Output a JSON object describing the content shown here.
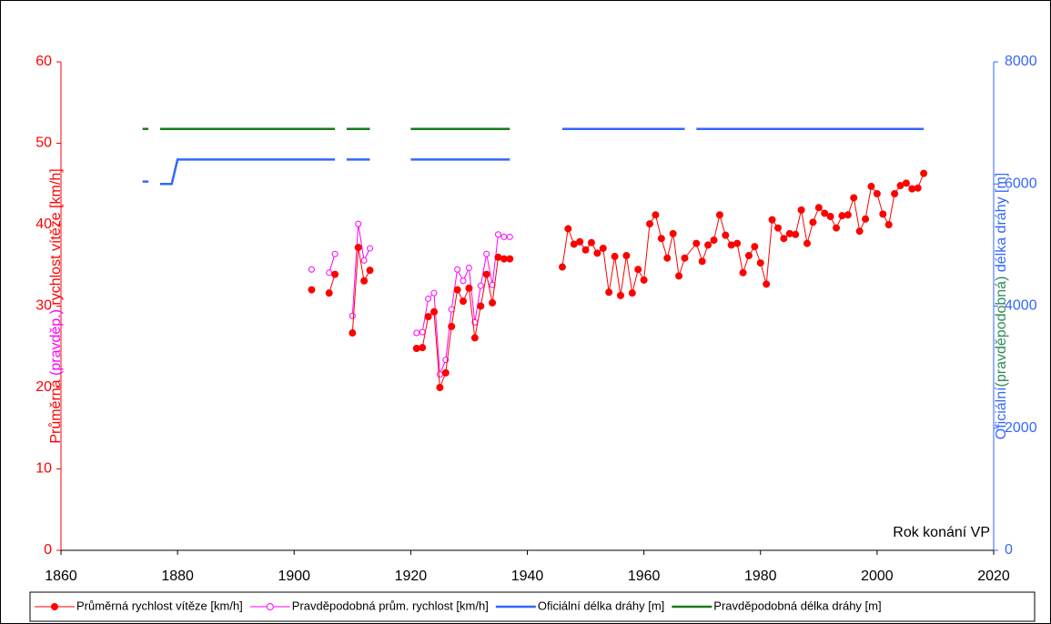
{
  "chart_data": {
    "type": "line",
    "xlabel": "Rok konání VP",
    "ylabel": [
      {
        "text": "Průměrná ",
        "color": "#ff0000"
      },
      {
        "text": "(pravděp.)",
        "color": "#ff00ff"
      },
      {
        "text": " rychlost vítěze [km/h]",
        "color": "#ff0000"
      }
    ],
    "y2label": [
      {
        "text": "Oficiální",
        "color": "#3366ff"
      },
      {
        "text": "(pravděpodobná)",
        "color": "#2e8b57"
      },
      {
        "text": " délka dráhy [m]",
        "color": "#3366ff"
      }
    ],
    "xlim": [
      1860,
      2020
    ],
    "xticks": [
      1860,
      1880,
      1900,
      1920,
      1940,
      1960,
      1980,
      2000,
      2020
    ],
    "ylim": [
      0,
      60
    ],
    "yticks": [
      0,
      10,
      20,
      30,
      40,
      50,
      60
    ],
    "ycolor": "#ff0000",
    "y2lim": [
      0,
      8000
    ],
    "y2ticks": [
      0,
      2000,
      4000,
      6000,
      8000
    ],
    "y2color": "#3366ff",
    "legend": "bottom",
    "series": [
      {
        "name": "Průměrná rychlost vítěze [km/h]",
        "color": "#ff0000",
        "marker": "filled",
        "axis": "y",
        "x": [
          1903,
          1904,
          1906,
          1907,
          1908,
          1910,
          1911,
          1912,
          1913,
          1914,
          1921,
          1922,
          1923,
          1924,
          1925,
          1926,
          1927,
          1928,
          1929,
          1930,
          1931,
          1932,
          1933,
          1934,
          1935,
          1936,
          1937,
          1940,
          1946,
          1947,
          1948,
          1949,
          1950,
          1951,
          1952,
          1953,
          1954,
          1955,
          1956,
          1957,
          1958,
          1959,
          1960,
          1961,
          1962,
          1963,
          1964,
          1965,
          1966,
          1967,
          1969,
          1970,
          1971,
          1972,
          1973,
          1974,
          1975,
          1976,
          1977,
          1978,
          1979,
          1980,
          1981,
          1982,
          1983,
          1984,
          1985,
          1986,
          1987,
          1988,
          1989,
          1990,
          1991,
          1992,
          1993,
          1994,
          1995,
          1996,
          1997,
          1998,
          1999,
          2000,
          2001,
          2002,
          2003,
          2004,
          2005,
          2006,
          2007,
          2008
        ],
        "values": [
          32,
          null,
          31.6,
          33.9,
          null,
          26.7,
          37.2,
          33.1,
          34.4,
          null,
          24.8,
          24.9,
          28.7,
          29.3,
          20,
          21.8,
          27.5,
          32,
          30.6,
          32.2,
          26.1,
          30,
          33.9,
          30.4,
          36,
          35.8,
          35.8,
          null,
          34.8,
          39.5,
          37.6,
          37.9,
          36.9,
          37.8,
          36.5,
          37.1,
          31.7,
          36.1,
          31.3,
          36.2,
          31.6,
          34.5,
          33.2,
          40.1,
          41.2,
          38.3,
          35.9,
          38.9,
          33.7,
          35.9,
          37.7,
          35.5,
          37.5,
          38.1,
          41.2,
          38.7,
          37.5,
          37.7,
          34.1,
          36.2,
          37.3,
          35.3,
          32.7,
          40.6,
          39.6,
          38.3,
          38.9,
          38.8,
          41.8,
          37.7,
          40.3,
          42.1,
          41.4,
          41,
          39.6,
          41.1,
          41.2,
          43.3,
          39.2,
          40.7,
          44.7,
          43.8,
          41.3,
          40,
          43.8,
          44.8,
          45.1,
          44.4,
          44.5,
          46.3
        ]
      },
      {
        "name": "Pravděpodobná prům. rychlost [km/h]",
        "color": "#ff00ff",
        "marker": "open",
        "axis": "y",
        "x": [
          1903,
          1904,
          1906,
          1907,
          1908,
          1910,
          1911,
          1912,
          1913,
          1914,
          1921,
          1922,
          1923,
          1924,
          1925,
          1926,
          1927,
          1928,
          1929,
          1930,
          1931,
          1932,
          1933,
          1934,
          1935,
          1936,
          1937
        ],
        "values": [
          34.5,
          null,
          34.1,
          36.4,
          null,
          28.8,
          40.1,
          35.6,
          37.1,
          null,
          26.7,
          26.8,
          30.9,
          31.6,
          21.6,
          23.4,
          29.6,
          34.5,
          33.1,
          34.7,
          28,
          32.5,
          36.4,
          32.6,
          38.8,
          38.5,
          38.5
        ]
      },
      {
        "name": "Oficiální délka dráhy [m]",
        "color": "#3366ff",
        "marker": "none",
        "axis": "y2",
        "x": [
          1874,
          1875,
          1876,
          1877,
          1879,
          1880,
          1907,
          1908,
          1909,
          1913,
          1914,
          1920,
          1937,
          1940,
          1946,
          1967,
          1968,
          1969,
          2008
        ],
        "values": [
          6040,
          6040,
          null,
          6000,
          6000,
          6400,
          6400,
          null,
          6400,
          6400,
          null,
          6400,
          6400,
          null,
          6900,
          6900,
          null,
          6900,
          6900
        ]
      },
      {
        "name": "Pravděpodobná délka dráhy [m]",
        "color": "#1a7a1a",
        "marker": "none",
        "axis": "y2",
        "x": [
          1874,
          1875,
          1876,
          1877,
          1907,
          1908,
          1909,
          1913,
          1914,
          1920,
          1937
        ],
        "values": [
          6900,
          6900,
          null,
          6900,
          6900,
          null,
          6900,
          6900,
          null,
          6900,
          6900
        ]
      }
    ]
  }
}
